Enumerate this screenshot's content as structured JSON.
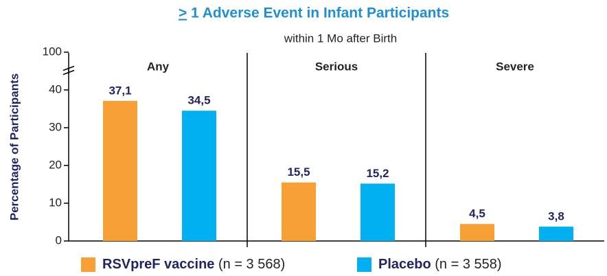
{
  "chart_data": {
    "type": "bar",
    "title_prefix": ">",
    "title": "1 Adverse Event in Infant Participants",
    "subtitle": "within 1 Mo after Birth",
    "y_label": "Percentage of Participants",
    "categories": [
      "Any",
      "Serious",
      "Severe"
    ],
    "series": [
      {
        "name": "RSVpreF vaccine",
        "note": "(n = 3 568)",
        "color": "#f7a035",
        "values": [
          37.1,
          15.5,
          4.5
        ],
        "value_labels": [
          "37,1",
          "15,5",
          "4,5"
        ]
      },
      {
        "name": "Placebo",
        "note": "(n = 3 558)",
        "color": "#00b0f0",
        "values": [
          34.5,
          15.2,
          3.8
        ],
        "value_labels": [
          "34,5",
          "15,2",
          "3,8"
        ]
      }
    ],
    "ylim": [
      0,
      100
    ],
    "yticks": [
      0,
      10,
      20,
      30,
      40,
      100
    ],
    "y_break": [
      45,
      95
    ]
  }
}
